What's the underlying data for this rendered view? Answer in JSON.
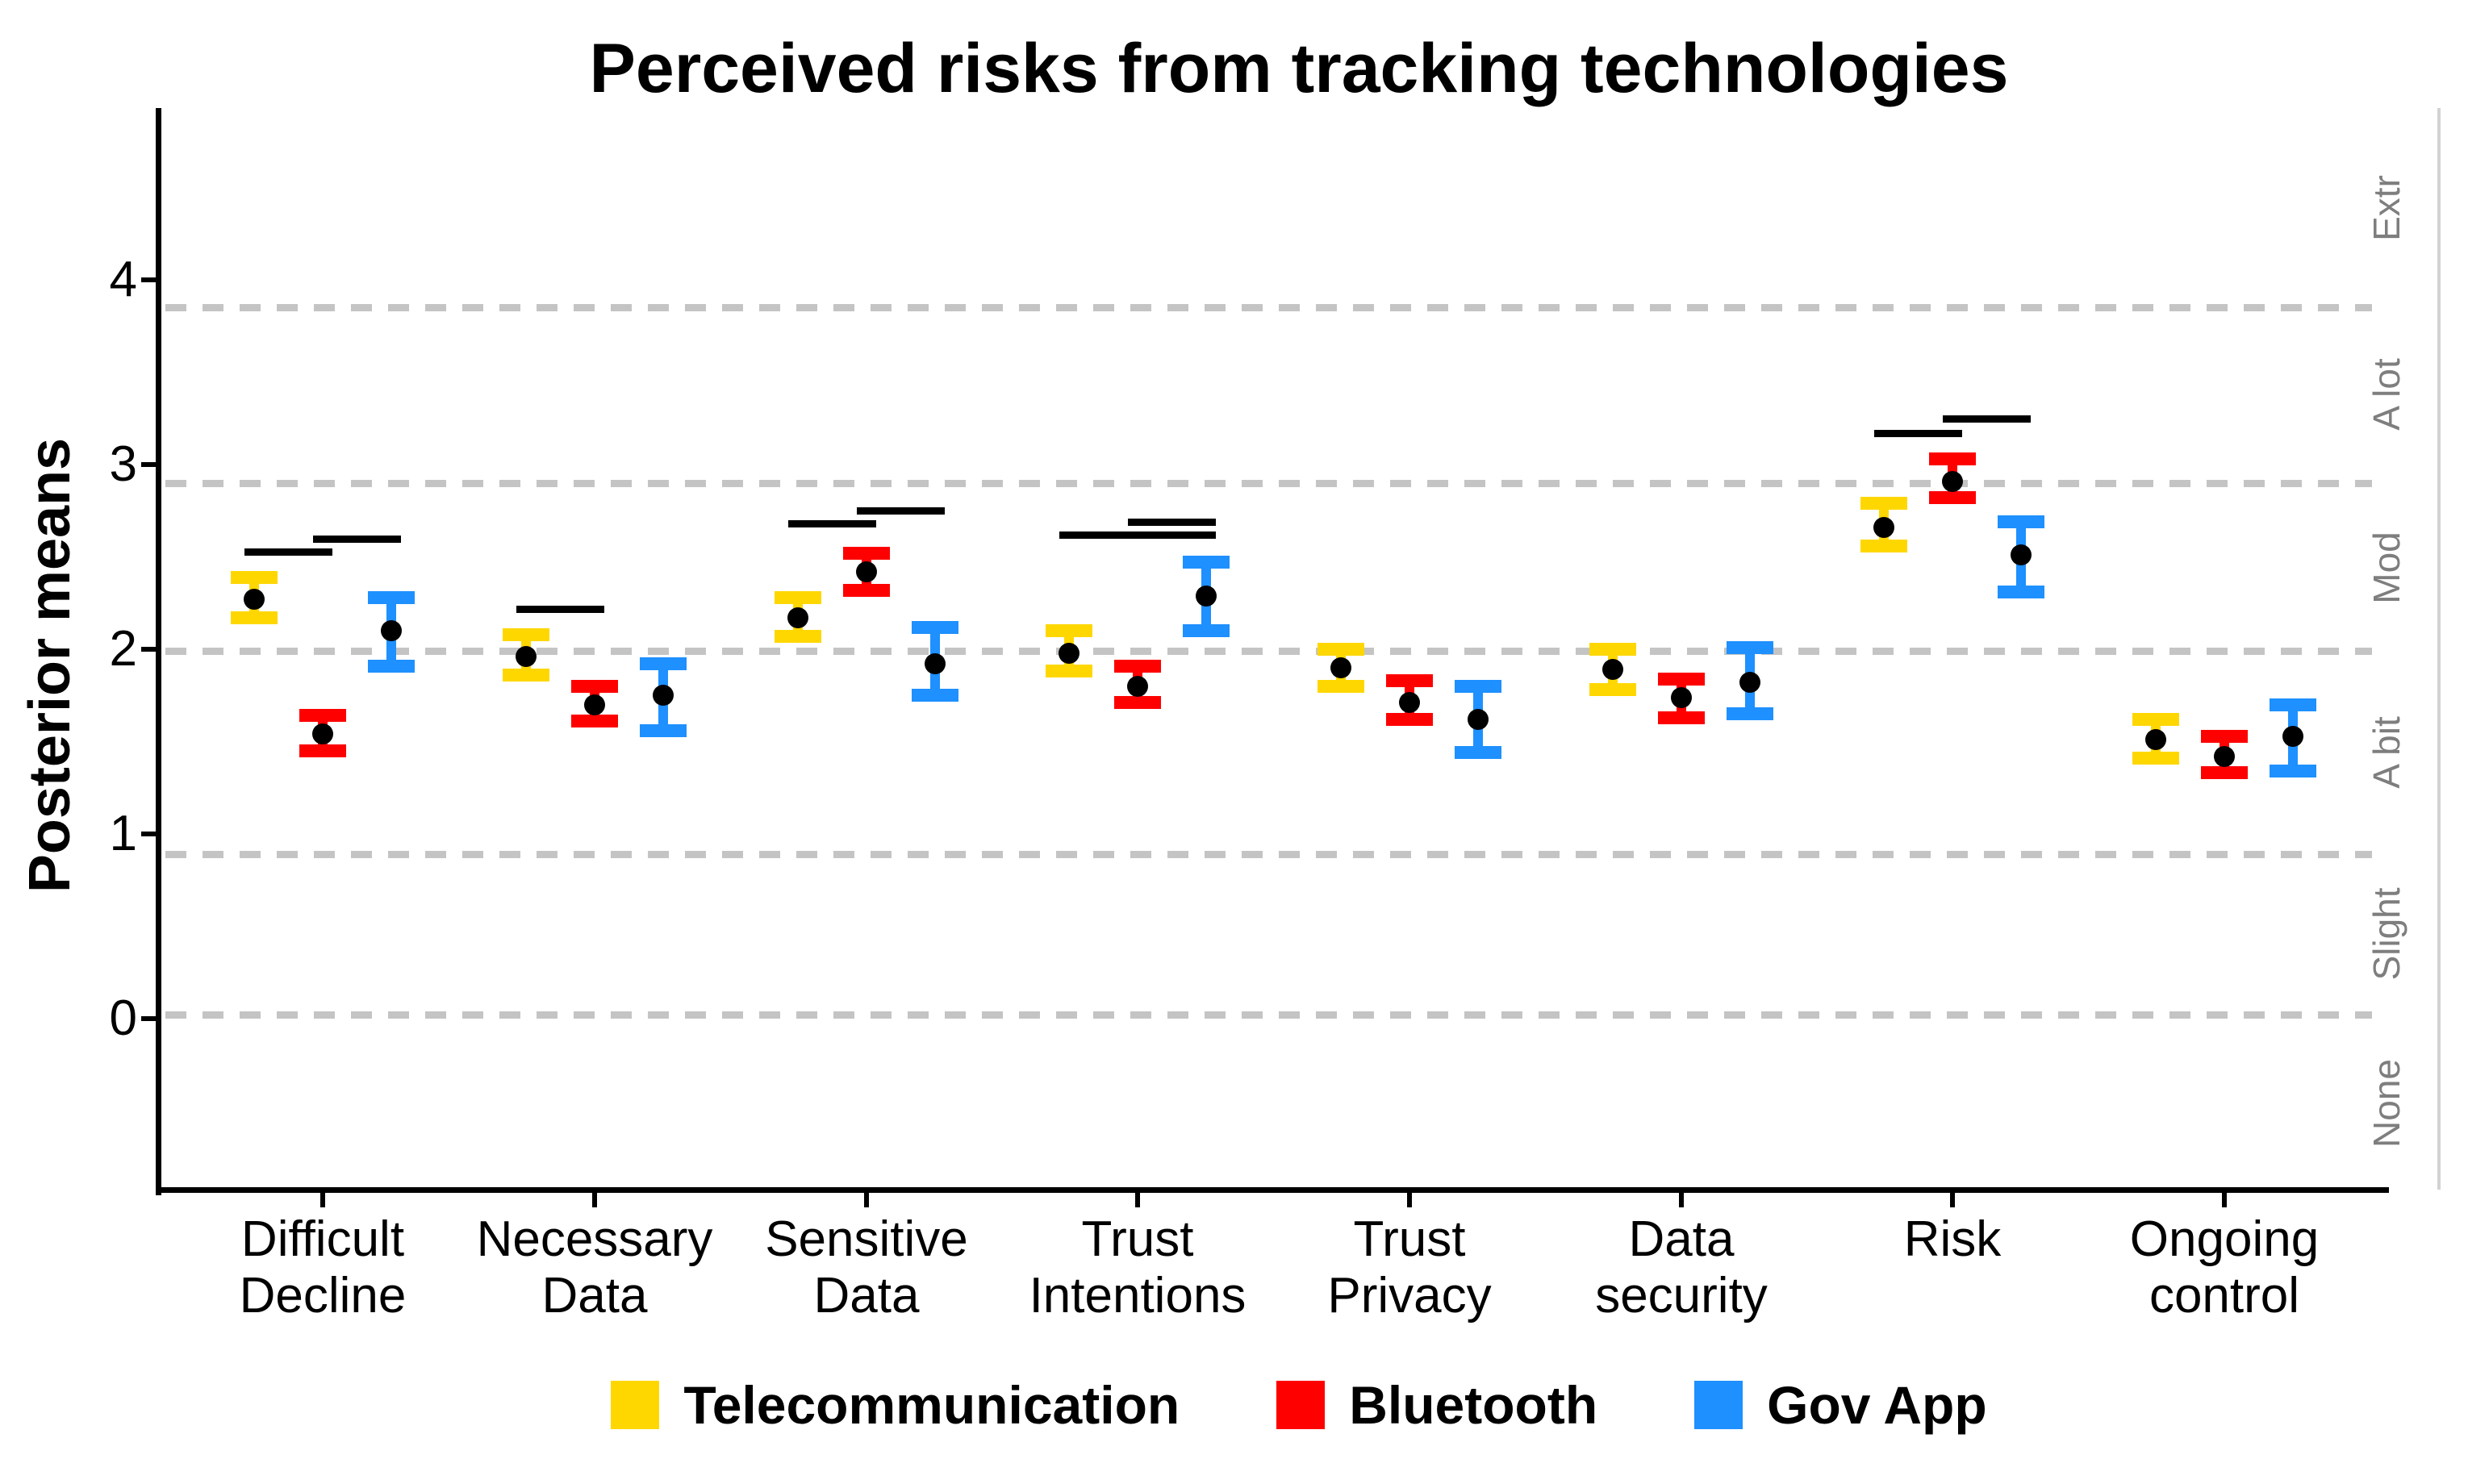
{
  "chart_data": {
    "type": "errorbar",
    "title": "Perceived risks from tracking technologies",
    "ylabel": "Posterior means",
    "xlabel": "",
    "ylim": [
      -0.93,
      4.93
    ],
    "y_ticks": [
      0,
      1,
      2,
      3,
      4
    ],
    "grid": "dashed horizontal threshold lines only",
    "legend_position": "bottom",
    "categories": [
      "Difficult\nDecline",
      "Necessary\nData",
      "Sensitive\nData",
      "Trust\nIntentions",
      "Trust\nPrivacy",
      "Data\nsecurity",
      "Risk",
      "Ongoing\ncontrol"
    ],
    "series": [
      {
        "name": "Telecommunication",
        "color": "#FFD700",
        "means": [
          2.27,
          1.96,
          2.17,
          1.98,
          1.9,
          1.89,
          2.66,
          1.51
        ],
        "ci_lower": [
          2.17,
          1.86,
          2.07,
          1.88,
          1.8,
          1.78,
          2.56,
          1.41
        ],
        "ci_upper": [
          2.39,
          2.08,
          2.28,
          2.1,
          2.0,
          2.0,
          2.79,
          1.62
        ]
      },
      {
        "name": "Bluetooth",
        "color": "#FF0000",
        "means": [
          1.54,
          1.7,
          2.42,
          1.8,
          1.71,
          1.74,
          2.91,
          1.42
        ],
        "ci_lower": [
          1.45,
          1.61,
          2.32,
          1.71,
          1.62,
          1.63,
          2.82,
          1.33
        ],
        "ci_upper": [
          1.64,
          1.8,
          2.52,
          1.91,
          1.83,
          1.84,
          3.03,
          1.53
        ]
      },
      {
        "name": "Gov App",
        "color": "#1E90FF",
        "means": [
          2.1,
          1.75,
          1.92,
          2.29,
          1.62,
          1.82,
          2.51,
          1.53
        ],
        "ci_lower": [
          1.91,
          1.56,
          1.75,
          2.1,
          1.44,
          1.65,
          2.31,
          1.34
        ],
        "ci_upper": [
          2.28,
          1.92,
          2.12,
          2.47,
          1.8,
          2.01,
          2.69,
          1.7
        ]
      }
    ],
    "point_color": "#000000",
    "threshold_lines": [
      0.02,
      0.89,
      1.99,
      2.9,
      3.85
    ],
    "threshold_line_color": "#C4C4C4",
    "response_scale_labels": [
      {
        "text": "None",
        "y": -0.46
      },
      {
        "text": "Slight",
        "y": 0.46
      },
      {
        "text": "A bit",
        "y": 1.44
      },
      {
        "text": "Mod",
        "y": 2.44
      },
      {
        "text": "A lot",
        "y": 3.38
      },
      {
        "text": "Extr",
        "y": 4.39
      }
    ],
    "significance_bars": [
      {
        "category": 0,
        "between": [
          "Telecommunication",
          "Bluetooth"
        ],
        "y": 2.53
      },
      {
        "category": 0,
        "between": [
          "Bluetooth",
          "Gov App"
        ],
        "y": 2.6
      },
      {
        "category": 1,
        "between": [
          "Telecommunication",
          "Bluetooth"
        ],
        "y": 2.22
      },
      {
        "category": 2,
        "between": [
          "Telecommunication",
          "Bluetooth"
        ],
        "y": 2.68
      },
      {
        "category": 2,
        "between": [
          "Bluetooth",
          "Gov App"
        ],
        "y": 2.75
      },
      {
        "category": 3,
        "between": [
          "Telecommunication",
          "Gov App"
        ],
        "y": 2.62
      },
      {
        "category": 3,
        "between": [
          "Bluetooth",
          "Gov App"
        ],
        "y": 2.69
      },
      {
        "category": 6,
        "between": [
          "Telecommunication",
          "Bluetooth"
        ],
        "y": 3.17
      },
      {
        "category": 6,
        "between": [
          "Bluetooth",
          "Gov App"
        ],
        "y": 3.25
      }
    ]
  }
}
